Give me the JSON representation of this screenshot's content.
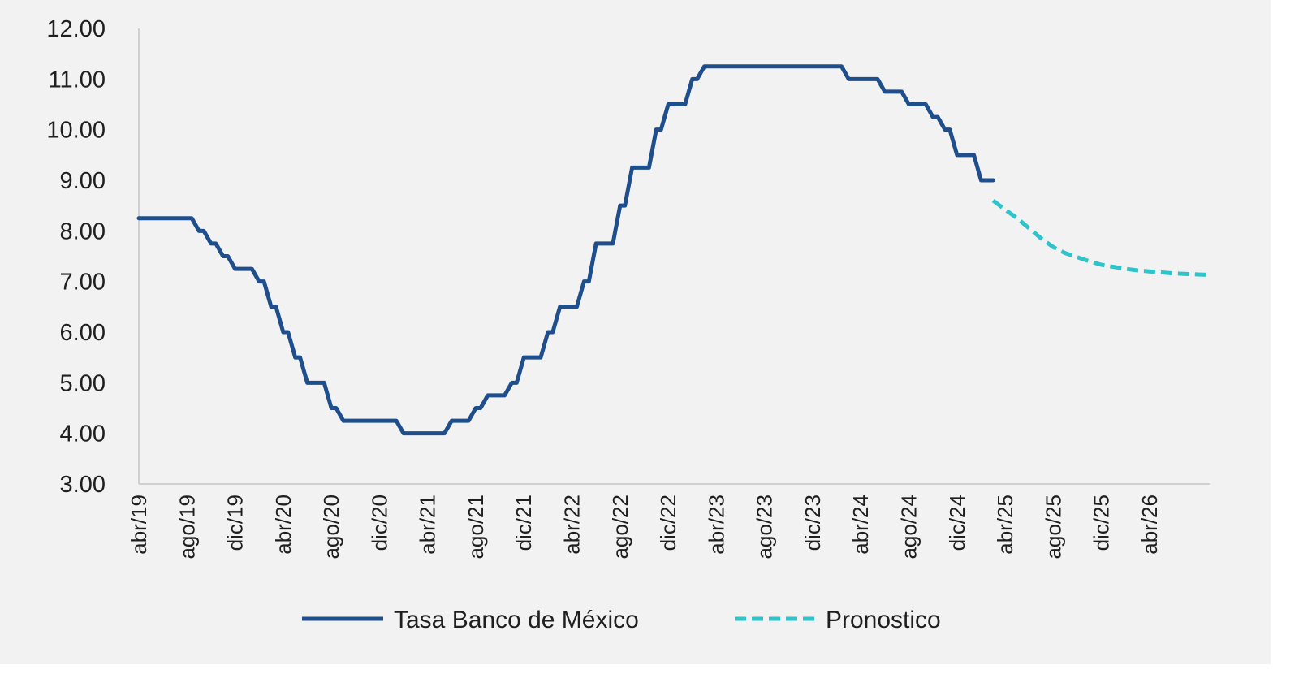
{
  "chart_data": {
    "type": "line",
    "title": "",
    "xlabel": "",
    "ylabel": "",
    "ylim": [
      3,
      12
    ],
    "yticks": [
      "3.00",
      "4.00",
      "5.00",
      "6.00",
      "7.00",
      "8.00",
      "9.00",
      "10.00",
      "11.00",
      "12.00"
    ],
    "xlim": [
      "2019-04",
      "2026-09"
    ],
    "xticks": [
      "abr/19",
      "ago/19",
      "dic/19",
      "abr/20",
      "ago/20",
      "dic/20",
      "abr/21",
      "ago/21",
      "dic/21",
      "abr/22",
      "ago/22",
      "dic/22",
      "abr/23",
      "ago/23",
      "dic/23",
      "abr/24",
      "ago/24",
      "dic/24",
      "abr/25",
      "ago/25",
      "dic/25",
      "abr/26"
    ],
    "grid": false,
    "legend": "bottom",
    "series": [
      {
        "name": "Tasa Banco de México",
        "color": "#1f4e8c",
        "style": "solid-step",
        "points": [
          [
            "2019-04",
            8.25
          ],
          [
            "2019-08",
            8.25
          ],
          [
            "2019-09",
            8.0
          ],
          [
            "2019-10",
            7.75
          ],
          [
            "2019-11",
            7.5
          ],
          [
            "2019-12",
            7.25
          ],
          [
            "2020-02",
            7.0
          ],
          [
            "2020-03",
            6.5
          ],
          [
            "2020-04",
            6.0
          ],
          [
            "2020-05",
            5.5
          ],
          [
            "2020-06",
            5.0
          ],
          [
            "2020-08",
            4.5
          ],
          [
            "2020-09",
            4.25
          ],
          [
            "2021-02",
            4.0
          ],
          [
            "2021-06",
            4.25
          ],
          [
            "2021-08",
            4.5
          ],
          [
            "2021-09",
            4.75
          ],
          [
            "2021-11",
            5.0
          ],
          [
            "2021-12",
            5.5
          ],
          [
            "2022-02",
            6.0
          ],
          [
            "2022-03",
            6.5
          ],
          [
            "2022-05",
            7.0
          ],
          [
            "2022-06",
            7.75
          ],
          [
            "2022-08",
            8.5
          ],
          [
            "2022-09",
            9.25
          ],
          [
            "2022-11",
            10.0
          ],
          [
            "2022-12",
            10.5
          ],
          [
            "2023-02",
            11.0
          ],
          [
            "2023-03",
            11.25
          ],
          [
            "2024-03",
            11.0
          ],
          [
            "2024-06",
            10.75
          ],
          [
            "2024-08",
            10.5
          ],
          [
            "2024-10",
            10.25
          ],
          [
            "2024-11",
            10.0
          ],
          [
            "2024-12",
            9.5
          ],
          [
            "2025-02",
            9.0
          ],
          [
            "2025-03",
            9.0
          ]
        ]
      },
      {
        "name": "Pronostico",
        "color": "#2ec4c9",
        "style": "dashed",
        "points": [
          [
            "2025-03",
            8.6
          ],
          [
            "2025-04",
            8.42
          ],
          [
            "2025-05",
            8.25
          ],
          [
            "2025-06",
            8.05
          ],
          [
            "2025-07",
            7.85
          ],
          [
            "2025-08",
            7.68
          ],
          [
            "2025-09",
            7.56
          ],
          [
            "2025-10",
            7.48
          ],
          [
            "2025-11",
            7.4
          ],
          [
            "2025-12",
            7.33
          ],
          [
            "2026-01",
            7.29
          ],
          [
            "2026-02",
            7.25
          ],
          [
            "2026-03",
            7.22
          ],
          [
            "2026-04",
            7.2
          ],
          [
            "2026-05",
            7.18
          ],
          [
            "2026-06",
            7.16
          ],
          [
            "2026-07",
            7.15
          ],
          [
            "2026-08",
            7.14
          ],
          [
            "2026-09",
            7.13
          ]
        ]
      }
    ]
  }
}
